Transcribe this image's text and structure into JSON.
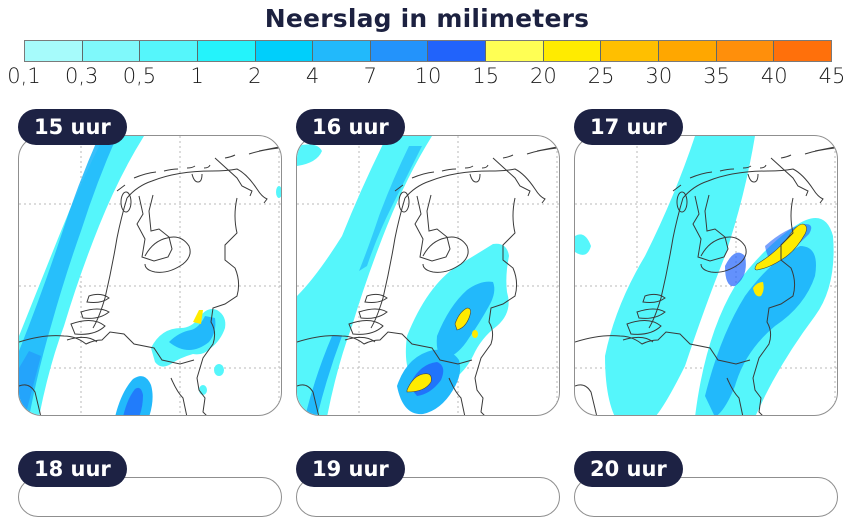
{
  "title": "Neerslag in milimeters",
  "legend": {
    "colors": [
      "#a6fbfb",
      "#7ff9fb",
      "#55f6fb",
      "#24f3fb",
      "#00cffb",
      "#22b9fb",
      "#2393fb",
      "#2163fb",
      "#ffff54",
      "#ffeb00",
      "#ffbf00",
      "#ffa700",
      "#ff8f0b",
      "#ff700b"
    ],
    "tick_labels": [
      "0,1",
      "0,3",
      "0,5",
      "1",
      "2",
      "4",
      "7",
      "10",
      "15",
      "20",
      "25",
      "30",
      "35",
      "40",
      "45"
    ]
  },
  "panels": [
    {
      "label": "15 uur"
    },
    {
      "label": "16 uur"
    },
    {
      "label": "17 uur"
    },
    {
      "label": "18 uur"
    },
    {
      "label": "19 uur"
    },
    {
      "label": "20 uur"
    }
  ],
  "chart_data": {
    "type": "heatmap",
    "title": "Neerslag in milimeters",
    "colorbar": {
      "bounds": [
        0.1,
        0.3,
        0.5,
        1,
        2,
        4,
        7,
        10,
        15,
        20,
        25,
        30,
        35,
        40,
        45
      ],
      "colors": [
        "#a6fbfb",
        "#7ff9fb",
        "#55f6fb",
        "#24f3fb",
        "#00cffb",
        "#22b9fb",
        "#2393fb",
        "#2163fb",
        "#ffff54",
        "#ffeb00",
        "#ffbf00",
        "#ffa700",
        "#ff8f0b",
        "#ff700b"
      ],
      "unit": "mm"
    },
    "frames": [
      {
        "time": "15 uur",
        "description": "Band of light-moderate rain off the west coast (2-7 mm); isolated cells in the southeast with a small 15-20 mm core near the Limburg/Gelderland border"
      },
      {
        "time": "16 uur",
        "description": "Coastal band persists; heavier cells in the southeast with two 15-25 mm cores"
      },
      {
        "time": "17 uur",
        "description": "Widespread rain over central and eastern Netherlands; elongated 15-25 mm core in the east"
      },
      {
        "time": "18 uur",
        "description": "Panel partially visible"
      },
      {
        "time": "19 uur",
        "description": "Panel partially visible"
      },
      {
        "time": "20 uur",
        "description": "Panel partially visible"
      }
    ]
  }
}
